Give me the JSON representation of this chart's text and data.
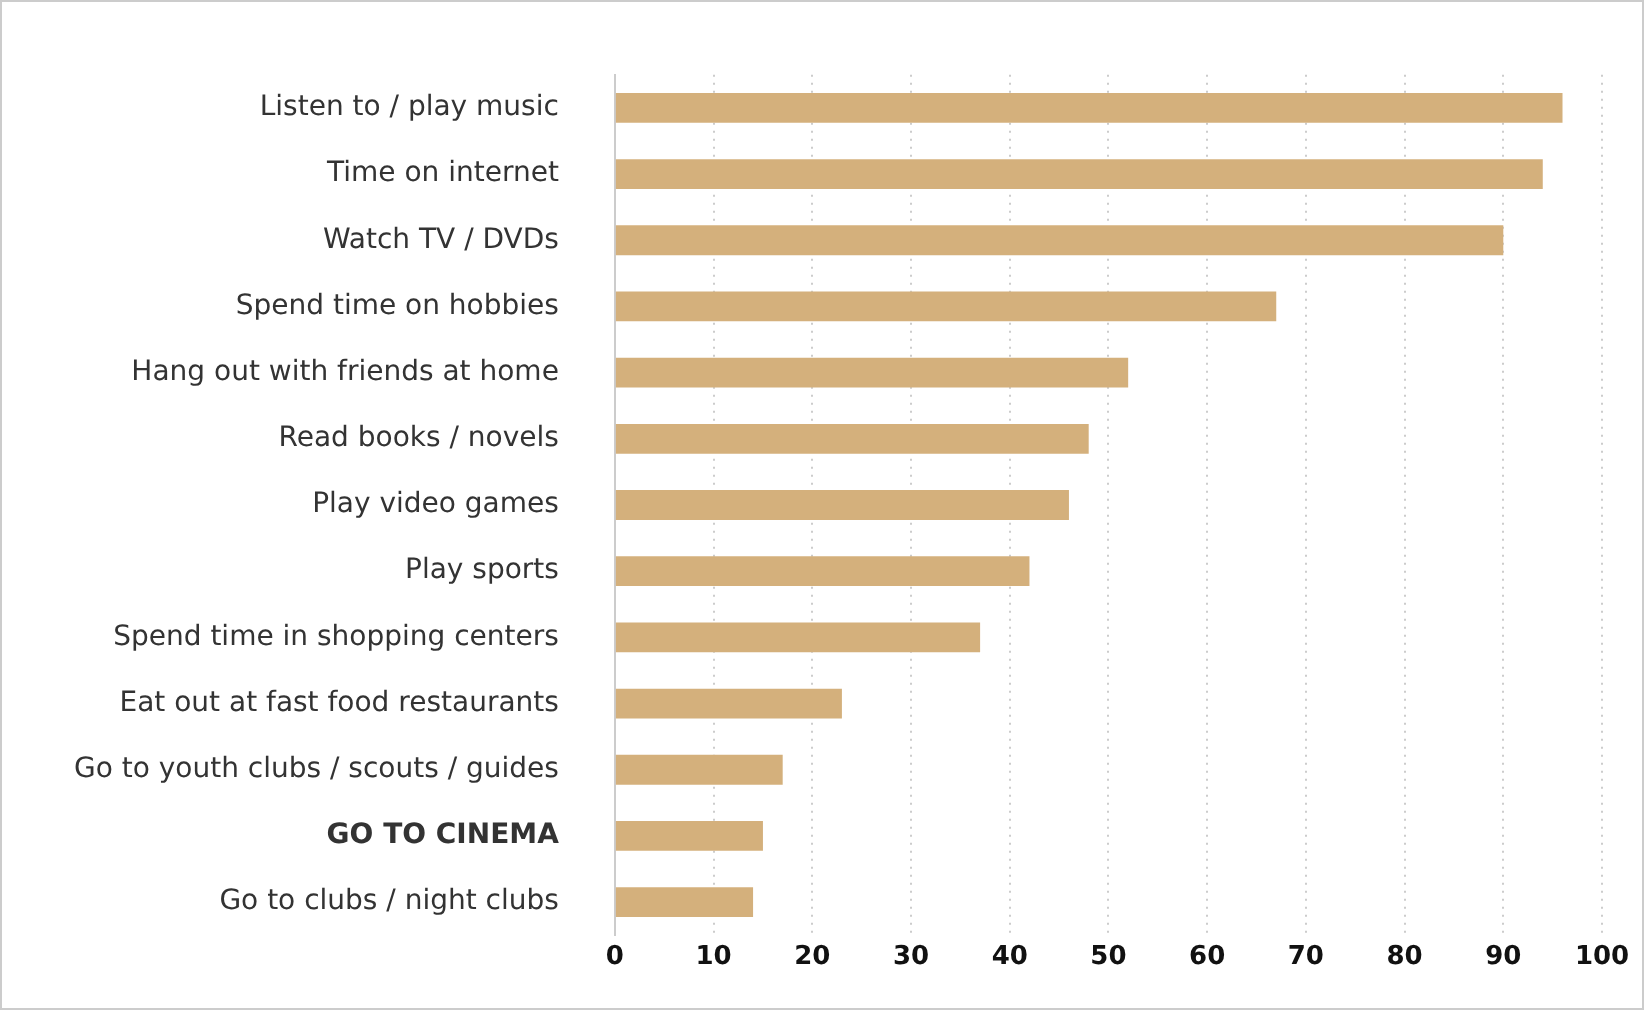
{
  "chart_data": {
    "type": "bar",
    "orientation": "horizontal",
    "categories": [
      "Listen to / play music",
      "Time on internet",
      "Watch TV / DVDs",
      "Spend time on hobbies",
      "Hang out with friends at home",
      "Read books / novels",
      "Play video games",
      "Play sports",
      "Spend time in shopping centers",
      "Eat out at fast food restaurants",
      "Go to youth clubs / scouts / guides",
      "GO TO CINEMA",
      "Go to clubs / night clubs"
    ],
    "values": [
      96,
      94,
      90,
      67,
      52,
      48,
      46,
      42,
      37,
      23,
      17,
      15,
      14
    ],
    "color": "#d4b07c",
    "xlim": [
      0,
      100
    ],
    "xticks": [
      0,
      10,
      20,
      30,
      40,
      50,
      60,
      70,
      80,
      90,
      100
    ],
    "grid": "x"
  }
}
